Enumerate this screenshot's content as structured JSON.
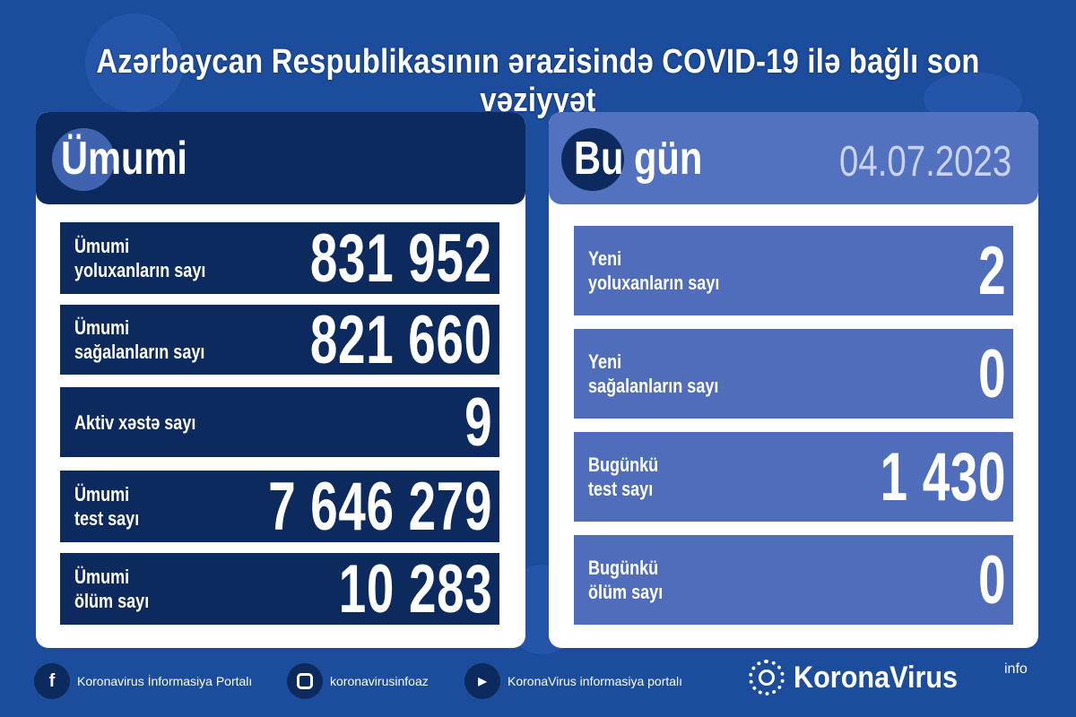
{
  "title": "Azərbaycan Respublikasının ərazisində COVID-19 ilə bağlı son vəziyyət",
  "colors": {
    "background": "#1c4c9c",
    "navy": "#0d2a5e",
    "today_blue": "#4f6dba"
  },
  "total": {
    "heading": "Ümumi",
    "rows": [
      {
        "label1": "Ümumi",
        "label2": "yoluxanların sayı",
        "value": "831 952"
      },
      {
        "label1": "Ümumi",
        "label2": "sağalanların sayı",
        "value": "821 660"
      },
      {
        "label1": "Aktiv xəstə sayı",
        "label2": "",
        "value": "9"
      },
      {
        "label1": "Ümumi",
        "label2": "test sayı",
        "value": "7 646 279"
      },
      {
        "label1": "Ümumi",
        "label2": "ölüm sayı",
        "value": "10 283"
      }
    ]
  },
  "today": {
    "heading": "Bu gün",
    "date": "04.07.2023",
    "rows": [
      {
        "label1": "Yeni",
        "label2": "yoluxanların sayı",
        "value": "2"
      },
      {
        "label1": "Yeni",
        "label2": "sağalanların sayı",
        "value": "0"
      },
      {
        "label1": "Bugünkü",
        "label2": "test sayı",
        "value": "1 430"
      },
      {
        "label1": "Bugünkü",
        "label2": "ölüm sayı",
        "value": "0"
      }
    ]
  },
  "footer": {
    "facebook": "Koronavirus İnformasiya Portalı",
    "instagram": "koronavirusinfoaz",
    "youtube": "KoronaVirus informasiya portalı",
    "brand": "KoronaVirus",
    "brand_sup": "info"
  },
  "icons": [
    "facebook-icon",
    "instagram-icon",
    "youtube-icon",
    "virus-icon",
    "sun-logo-icon"
  ]
}
